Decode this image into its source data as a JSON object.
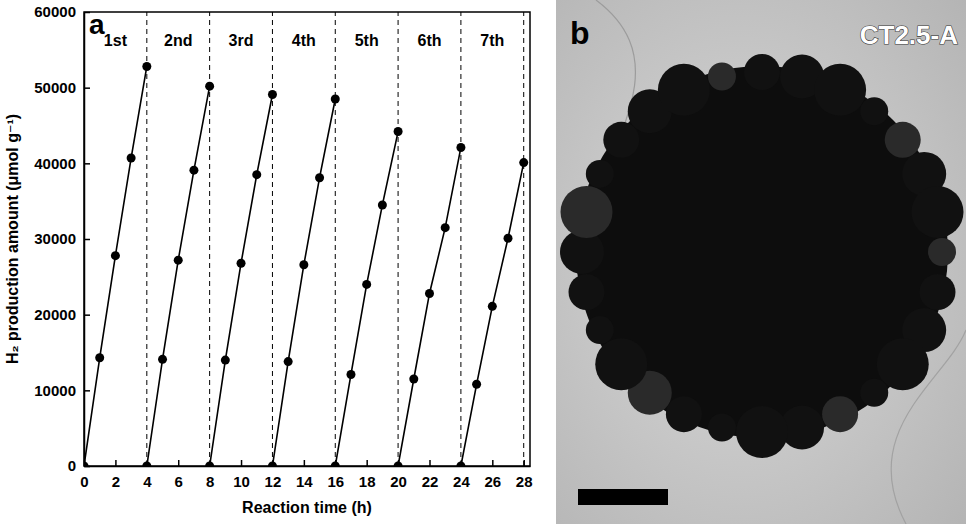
{
  "chart_data": {
    "type": "line",
    "panel": "a",
    "x_label": "Reaction time (h)",
    "y_label": "H₂ production amount (μmol g⁻¹)",
    "color": "#000000",
    "marker": "circle",
    "line_style": "solid",
    "series": [
      {
        "x": [
          0,
          1,
          2,
          3,
          4
        ],
        "values": [
          0,
          14300,
          27800,
          40700,
          52800
        ]
      },
      {
        "x": [
          4,
          5,
          6,
          7,
          8
        ],
        "values": [
          0,
          14100,
          27200,
          39100,
          50200
        ]
      },
      {
        "x": [
          8,
          9,
          10,
          11,
          12
        ],
        "values": [
          0,
          14000,
          26800,
          38500,
          49100
        ]
      },
      {
        "x": [
          12,
          13,
          14,
          15,
          16
        ],
        "values": [
          0,
          13800,
          26600,
          38100,
          48500
        ]
      },
      {
        "x": [
          16,
          17,
          18,
          19,
          20
        ],
        "values": [
          0,
          12100,
          24000,
          34500,
          44200
        ]
      },
      {
        "x": [
          20,
          21,
          22,
          23,
          24
        ],
        "values": [
          0,
          11500,
          22800,
          31500,
          42100
        ]
      },
      {
        "x": [
          24,
          25,
          26,
          27,
          28
        ],
        "values": [
          0,
          10800,
          21100,
          30100,
          40100
        ]
      }
    ],
    "xlim": [
      0,
      28.4
    ],
    "xticks": [
      0,
      2,
      4,
      6,
      8,
      10,
      12,
      14,
      16,
      18,
      20,
      22,
      24,
      26,
      28
    ],
    "ylim": [
      0,
      60000
    ],
    "yticks": [
      0,
      10000,
      20000,
      30000,
      40000,
      50000,
      60000
    ],
    "vlines": [
      4,
      8,
      12,
      16,
      20,
      24,
      28
    ],
    "annotations": [
      {
        "text": "1st",
        "x": 2,
        "y": 55500
      },
      {
        "text": "2nd",
        "x": 6,
        "y": 55500
      },
      {
        "text": "3rd",
        "x": 10,
        "y": 55500
      },
      {
        "text": "4th",
        "x": 14,
        "y": 55500
      },
      {
        "text": "5th",
        "x": 18,
        "y": 55500
      },
      {
        "text": "6th",
        "x": 22,
        "y": 55500
      },
      {
        "text": "7th",
        "x": 26,
        "y": 55500
      }
    ]
  },
  "image_panel": {
    "panel": "b",
    "label": "CT2.5-A"
  }
}
